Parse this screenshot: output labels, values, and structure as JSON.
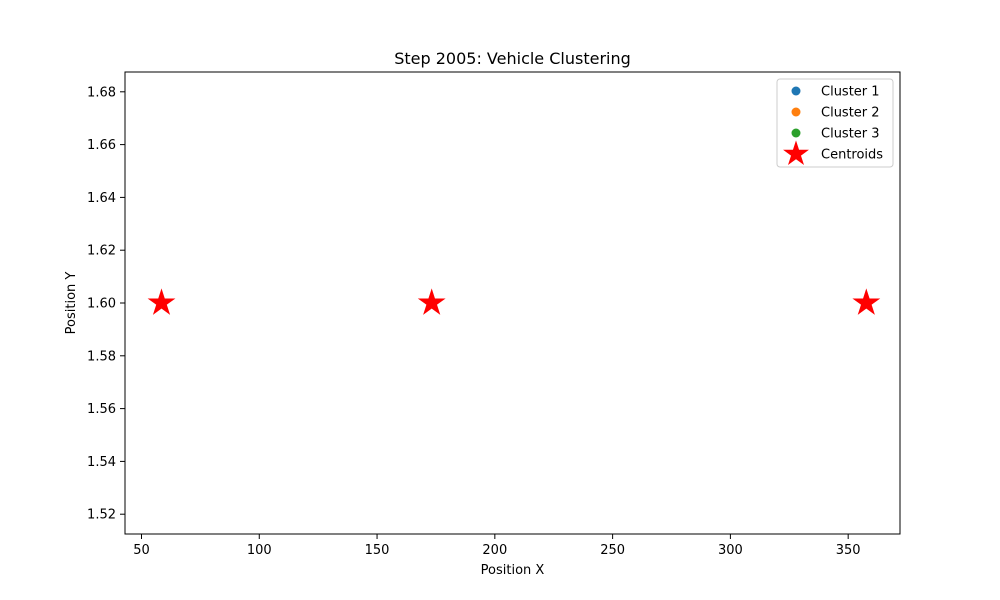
{
  "chart_data": {
    "type": "scatter",
    "title": "Step 2005: Vehicle Clustering",
    "xlabel": "Position X",
    "ylabel": "Position Y",
    "xlim": [
      43,
      372
    ],
    "ylim": [
      1.5125,
      1.6875
    ],
    "xticks": [
      50,
      100,
      150,
      200,
      250,
      300,
      350
    ],
    "yticks": [
      1.52,
      1.54,
      1.56,
      1.58,
      1.6,
      1.62,
      1.64,
      1.66,
      1.68
    ],
    "xtick_labels": [
      "50",
      "100",
      "150",
      "200",
      "250",
      "300",
      "350"
    ],
    "ytick_labels": [
      "1.52",
      "1.54",
      "1.56",
      "1.58",
      "1.60",
      "1.62",
      "1.64",
      "1.66",
      "1.68"
    ],
    "grid": false,
    "legend_position": "top-right",
    "series": [
      {
        "name": "Cluster 1",
        "color": "#1f77b4",
        "marker": "circle",
        "points": []
      },
      {
        "name": "Cluster 2",
        "color": "#ff7f0e",
        "marker": "circle",
        "points": []
      },
      {
        "name": "Cluster 3",
        "color": "#2ca02c",
        "marker": "circle",
        "points": []
      },
      {
        "name": "Centroids",
        "color": "#ff0000",
        "marker": "star",
        "points": [
          {
            "x": 58.5,
            "y": 1.6
          },
          {
            "x": 173.2,
            "y": 1.6
          },
          {
            "x": 357.7,
            "y": 1.6
          }
        ]
      }
    ]
  }
}
